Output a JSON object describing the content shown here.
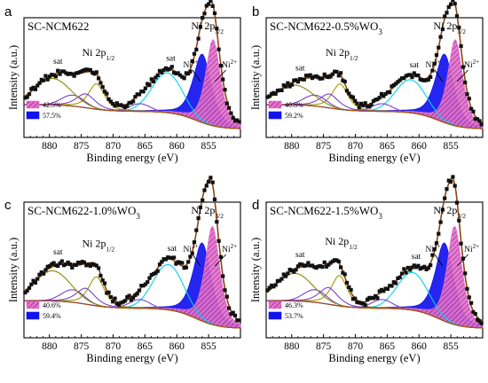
{
  "chart_data": [
    {
      "type": "line",
      "panel": "a",
      "title": "SC-NCM622",
      "xlabel": "Binding energy (eV)",
      "ylabel": "Intensity (a.u.)",
      "xlim": [
        884,
        850
      ],
      "xticks": [
        880,
        875,
        870,
        865,
        860,
        855
      ],
      "peak_labels": [
        "Ni 2p3/2",
        "Ni 2p1/2",
        "sat",
        "sat",
        "Ni3+",
        "Ni2+"
      ],
      "legend": [
        {
          "label": "42.5%",
          "color": "#e76fd0",
          "pattern": "hatched"
        },
        {
          "label": "57.5%",
          "color": "#1212ee",
          "pattern": "solid"
        }
      ],
      "peaks": {
        "ni2": 854.3,
        "ni3": 856.0,
        "sat1": 861.5,
        "p12": 872.6,
        "sat2": 879.5
      },
      "intensity": {
        "main": 1.0,
        "sat1": 0.36,
        "p12": 0.42,
        "sat2": 0.24
      }
    },
    {
      "type": "line",
      "panel": "b",
      "title": "SC-NCM622-0.5%WO",
      "title_sub": "3",
      "xlabel": "Binding energy (eV)",
      "ylabel": "Intensity (a.u.)",
      "xlim": [
        884,
        850
      ],
      "xticks": [
        880,
        875,
        870,
        865,
        860,
        855
      ],
      "peak_labels": [
        "Ni 2p3/2",
        "Ni 2p1/2",
        "sat",
        "Ni3+",
        "Ni2+"
      ],
      "legend": [
        {
          "label": "40.8%",
          "color": "#e76fd0",
          "pattern": "hatched"
        },
        {
          "label": "59.2%",
          "color": "#1212ee",
          "pattern": "solid"
        }
      ],
      "peaks": {
        "ni2": 854.3,
        "ni3": 856.0,
        "sat1": 861.3,
        "p12": 872.4,
        "sat2": 879.5
      },
      "intensity": {
        "main": 1.0,
        "sat1": 0.3,
        "p12": 0.42,
        "sat2": 0.18
      }
    },
    {
      "type": "line",
      "panel": "c",
      "title": "SC-NCM622-1.0%WO",
      "title_sub": "3",
      "xlabel": "Binding energy (eV)",
      "ylabel": "Intensity (a.u.)",
      "xlim": [
        884,
        850
      ],
      "xticks": [
        880,
        875,
        870,
        865,
        860,
        855
      ],
      "peak_labels": [
        "Ni 2p3/2",
        "Ni 2p1/2",
        "sat",
        "sat",
        "Ni3+",
        "Ni2+"
      ],
      "legend": [
        {
          "label": "40.6%",
          "color": "#e76fd0",
          "pattern": "hatched"
        },
        {
          "label": "59.4%",
          "color": "#1212ee",
          "pattern": "solid"
        }
      ],
      "peaks": {
        "ni2": 854.4,
        "ni3": 856.0,
        "sat1": 861.3,
        "p12": 872.6,
        "sat2": 879.5
      },
      "intensity": {
        "main": 1.0,
        "sat1": 0.36,
        "p12": 0.42,
        "sat2": 0.24
      }
    },
    {
      "type": "line",
      "panel": "d",
      "title": "SC-NCM622-1.5%WO",
      "title_sub": "3",
      "xlabel": "Binding energy (eV)",
      "ylabel": "Intensity (a.u.)",
      "xlim": [
        884,
        850
      ],
      "xticks": [
        880,
        875,
        870,
        865,
        860,
        855
      ],
      "peak_labels": [
        "Ni 2p3/2",
        "Ni 2p1/2",
        "sat",
        "Ni3+",
        "Ni2+"
      ],
      "legend": [
        {
          "label": "46.3%",
          "color": "#e76fd0",
          "pattern": "hatched"
        },
        {
          "label": "53.7%",
          "color": "#1212ee",
          "pattern": "solid"
        }
      ],
      "peaks": {
        "ni2": 854.4,
        "ni3": 856.0,
        "sat1": 861.0,
        "p12": 872.5,
        "sat2": 879.5
      },
      "intensity": {
        "main": 1.0,
        "sat1": 0.3,
        "p12": 0.44,
        "sat2": 0.22
      }
    }
  ],
  "colors": {
    "ni2_fill": "#e76fd0",
    "ni3_fill": "#1212ee",
    "sat1_line": "#00d3e6",
    "sat2_line": "#8a8a00",
    "p12_line": "#9a9a00",
    "minor_line": "#7a3fd0",
    "background_line": "#b04a00",
    "envelope": "#8b4513",
    "data": "#111111"
  }
}
